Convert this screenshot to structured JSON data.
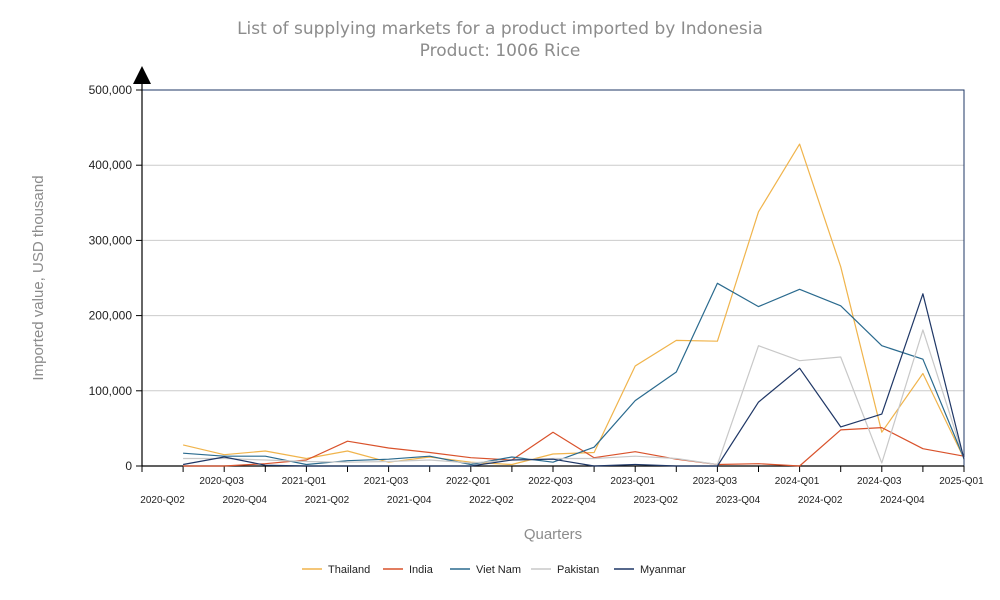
{
  "chart_data": {
    "type": "line",
    "title": "List of supplying markets for a product imported by Indonesia",
    "subtitle": "Product: 1006 Rice",
    "xlabel": "Quarters",
    "ylabel": "Imported value, USD thousand",
    "ylim": [
      0,
      500000
    ],
    "y_ticks": [
      0,
      100000,
      200000,
      300000,
      400000,
      500000
    ],
    "y_tick_labels": [
      "0",
      "100,000",
      "200,000",
      "300,000",
      "400,000",
      "500,000"
    ],
    "grid": true,
    "legend_position": "bottom",
    "categories": [
      "2020-Q02",
      "2020-Q03",
      "2020-Q04",
      "2021-Q01",
      "2021-Q02",
      "2021-Q03",
      "2021-Q04",
      "2022-Q01",
      "2022-Q02",
      "2022-Q03",
      "2022-Q04",
      "2023-Q01",
      "2023-Q02",
      "2023-Q03",
      "2023-Q04",
      "2024-Q01",
      "2024-Q02",
      "2024-Q03",
      "2024-Q04",
      "2025-Q01"
    ],
    "series": [
      {
        "name": "Thailand",
        "color": "#f0b44c",
        "values": [
          28000,
          15000,
          20000,
          10000,
          20000,
          5000,
          12000,
          5000,
          2000,
          16000,
          18000,
          133000,
          167000,
          166000,
          338000,
          428000,
          265000,
          45000,
          123000,
          10000
        ]
      },
      {
        "name": "India",
        "color": "#d9522b",
        "values": [
          0,
          0,
          3000,
          8000,
          33000,
          24000,
          18000,
          11000,
          8000,
          45000,
          11000,
          19000,
          9000,
          2000,
          3000,
          0,
          48000,
          51000,
          23000,
          13000
        ]
      },
      {
        "name": "Viet Nam",
        "color": "#2a6a8e",
        "values": [
          17000,
          13000,
          13000,
          2000,
          7000,
          9000,
          13000,
          2000,
          12000,
          5000,
          25000,
          87000,
          125000,
          243000,
          212000,
          235000,
          213000,
          160000,
          142000,
          10000
        ]
      },
      {
        "name": "Pakistan",
        "color": "#c8c8c8",
        "values": [
          10000,
          10000,
          8000,
          6000,
          5000,
          6000,
          8000,
          4000,
          8000,
          10000,
          10000,
          13000,
          10000,
          2000,
          160000,
          140000,
          145000,
          4000,
          181000,
          10000
        ]
      },
      {
        "name": "Myanmar",
        "color": "#1f3766",
        "values": [
          2000,
          12000,
          1000,
          0,
          0,
          0,
          0,
          0,
          8000,
          9000,
          0,
          2000,
          0,
          0,
          85000,
          130000,
          52000,
          69000,
          229000,
          9000
        ]
      }
    ]
  }
}
